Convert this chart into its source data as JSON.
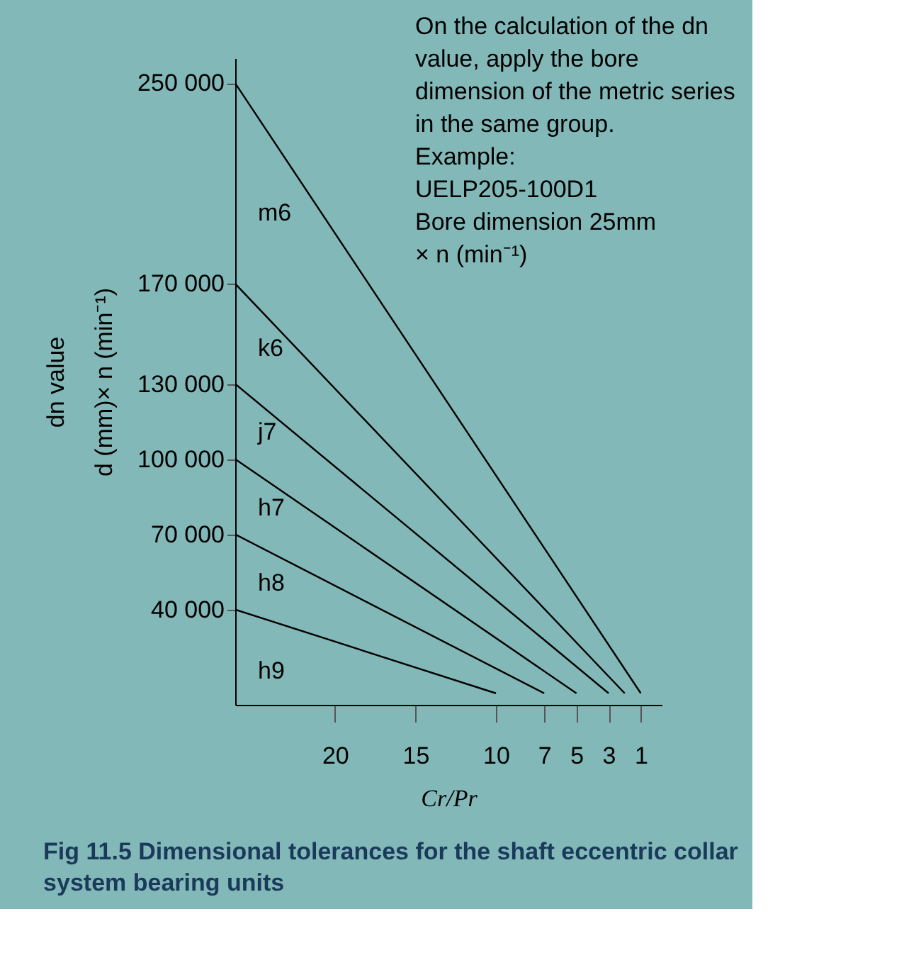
{
  "chart_data": {
    "type": "line",
    "title": "Fig 11.5 Dimensional tolerances for the shaft eccentric collar\nsystem bearing units",
    "xlabel": "Cr/Pr",
    "ylabel": "dn value\nd (mm)× n (min⁻¹)",
    "xlim": [
      26.2,
      -0.3
    ],
    "xticks": [
      20,
      15,
      10,
      7,
      5,
      3,
      1
    ],
    "ylim": [
      2000,
      260000
    ],
    "yticks": [
      {
        "value": 40000,
        "label": "40 000"
      },
      {
        "value": 70000,
        "label": "70 000"
      },
      {
        "value": 100000,
        "label": "100 000"
      },
      {
        "value": 130000,
        "label": "130 000"
      },
      {
        "value": 170000,
        "label": "170 000"
      },
      {
        "value": 250000,
        "label": "250 000"
      }
    ],
    "grid": false,
    "marker": "none",
    "line_style": "solid",
    "series": [
      {
        "name": "m6",
        "color": "#000000",
        "x": [
          26.2,
          1
        ],
        "values": [
          250000,
          6600
        ]
      },
      {
        "name": "k6",
        "color": "#000000",
        "x": [
          26.2,
          2
        ],
        "values": [
          170000,
          6600
        ]
      },
      {
        "name": "j7",
        "color": "#000000",
        "x": [
          26.2,
          3
        ],
        "values": [
          130000,
          6600
        ]
      },
      {
        "name": "h7",
        "color": "#000000",
        "x": [
          26.2,
          5
        ],
        "values": [
          100000,
          6600
        ]
      },
      {
        "name": "h8",
        "color": "#000000",
        "x": [
          26.2,
          7
        ],
        "values": [
          70000,
          6600
        ]
      },
      {
        "name": "h9",
        "color": "#000000",
        "x": [
          26.2,
          10
        ],
        "values": [
          40000,
          6600
        ]
      }
    ],
    "annotations": [
      "On the calculation of the dn\nvalue, apply the bore\ndimension of the metric series\nin the same group.\nExample:\nUELP205-100D1\nBore dimension 25mm\n× n (min⁻¹)"
    ]
  }
}
